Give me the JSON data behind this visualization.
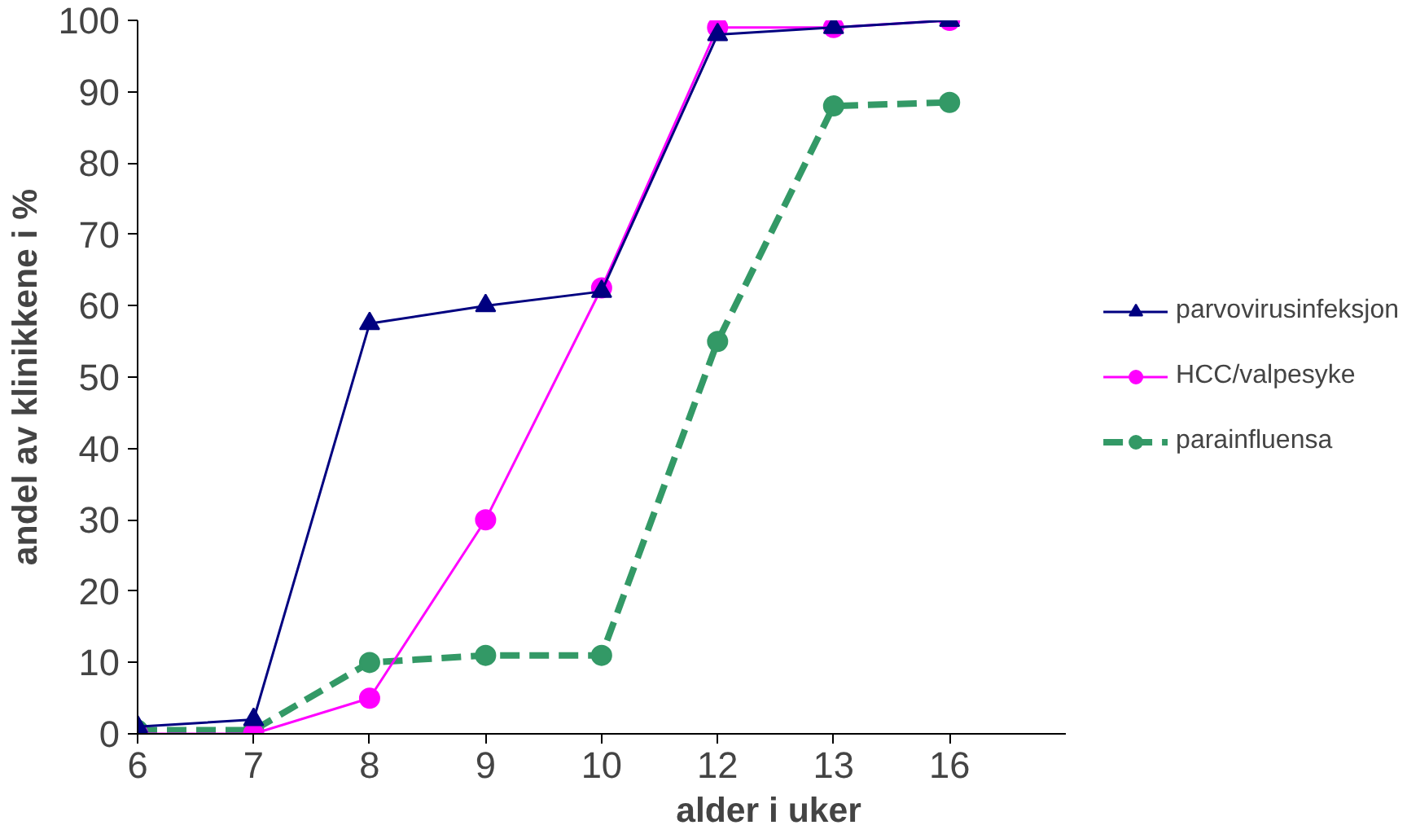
{
  "chart_data": {
    "type": "line",
    "xlabel": "alder i uker",
    "ylabel": "andel av klinikkene i %",
    "categories": [
      "6",
      "7",
      "8",
      "9",
      "10",
      "12",
      "13",
      "16"
    ],
    "series": [
      {
        "name": "parvovirusinfeksjon",
        "color": "#000080",
        "marker": "triangle",
        "line_style": "solid",
        "values": [
          1,
          2,
          57.5,
          60,
          62,
          98,
          99,
          100
        ]
      },
      {
        "name": "HCC/valpesyke",
        "color": "#ff00ff",
        "marker": "circle",
        "line_style": "solid",
        "values": [
          0,
          0,
          5,
          30,
          62.5,
          99,
          99,
          100
        ]
      },
      {
        "name": "parainfluensa",
        "color": "#339966",
        "marker": "circle",
        "line_style": "dashed",
        "values": [
          0.5,
          0.5,
          10,
          11,
          11,
          55,
          88,
          88.5
        ]
      }
    ],
    "ylim": [
      0,
      100
    ],
    "yticks": [
      0,
      10,
      20,
      30,
      40,
      50,
      60,
      70,
      80,
      90,
      100
    ],
    "grid": false,
    "legend": "right"
  }
}
